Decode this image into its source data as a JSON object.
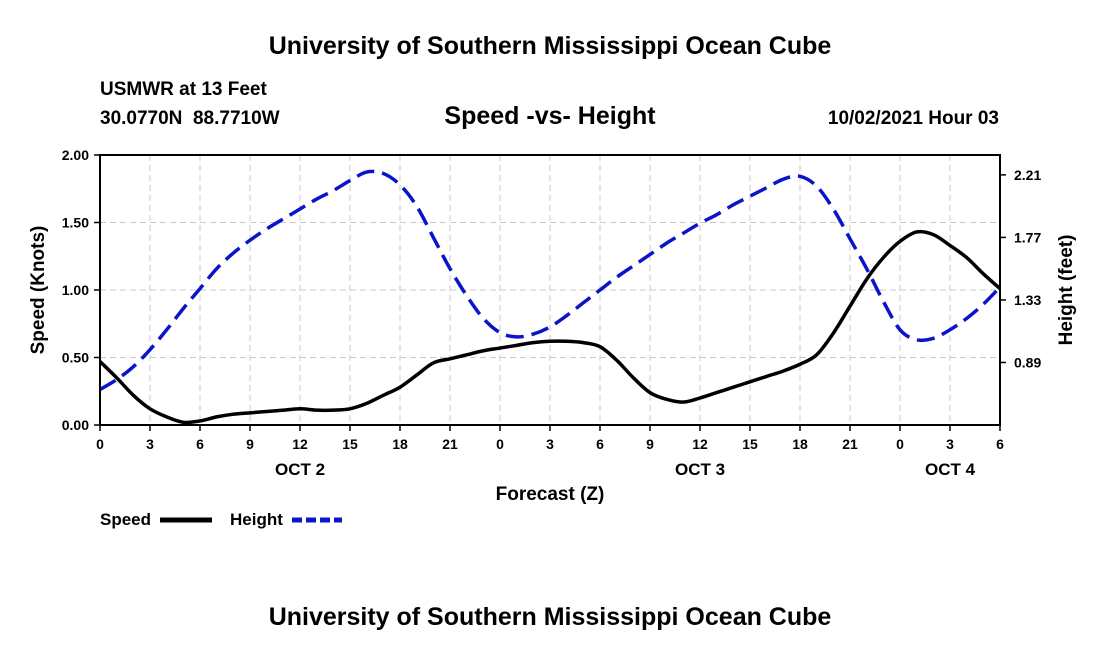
{
  "header": {
    "title": "University of Southern Mississippi Ocean Cube",
    "station": "USMWR at 13 Feet",
    "coordinates": "30.0770N  88.7710W",
    "date_hour": "10/02/2021 Hour 03"
  },
  "footer": {
    "title": "University of Southern Mississippi Ocean Cube"
  },
  "colors": {
    "speed": "#000000",
    "height": "#0a14c8",
    "grid": "#c8c8c8"
  },
  "chart_data": {
    "type": "line",
    "title": "Speed -vs- Height",
    "xlabel": "Forecast (Z)",
    "ylabel_left": "Speed (Knots)",
    "ylabel_right": "Height (feet)",
    "x_range": [
      0,
      54
    ],
    "x_ticks": [
      0,
      3,
      6,
      9,
      12,
      15,
      18,
      21,
      24,
      27,
      30,
      33,
      36,
      39,
      42,
      45,
      48,
      51,
      54
    ],
    "x_tick_labels": [
      "0",
      "3",
      "6",
      "9",
      "12",
      "15",
      "18",
      "21",
      "0",
      "3",
      "6",
      "9",
      "12",
      "15",
      "18",
      "21",
      "0",
      "3",
      "6"
    ],
    "day_labels": [
      {
        "x": 12,
        "label": "OCT 2"
      },
      {
        "x": 36,
        "label": "OCT 3"
      },
      {
        "x": 51,
        "label": "OCT 4"
      }
    ],
    "y_left_range": [
      0,
      2
    ],
    "y_left_ticks": [
      0,
      0.5,
      1,
      1.5,
      2
    ],
    "y_left_tick_labels": [
      "0.00",
      "0.50",
      "1.00",
      "1.50",
      "2.00"
    ],
    "y_right_range": [
      0.45,
      2.35
    ],
    "y_right_ticks": [
      0.89,
      1.33,
      1.77,
      2.21
    ],
    "y_right_tick_labels": [
      "0.89",
      "1.33",
      "1.77",
      "2.21"
    ],
    "series": [
      {
        "name": "Speed",
        "axis": "left",
        "style": "solid",
        "x": [
          0,
          1,
          2,
          3,
          4,
          5,
          6,
          7,
          8,
          9,
          10,
          11,
          12,
          13,
          14,
          15,
          16,
          17,
          18,
          19,
          20,
          21,
          22,
          23,
          24,
          25,
          26,
          27,
          28,
          29,
          30,
          31,
          32,
          33,
          34,
          35,
          36,
          37,
          38,
          39,
          40,
          41,
          42,
          43,
          44,
          45,
          46,
          47,
          48,
          49,
          50,
          51,
          52,
          53,
          54
        ],
        "values": [
          0.47,
          0.35,
          0.22,
          0.12,
          0.06,
          0.02,
          0.03,
          0.06,
          0.08,
          0.09,
          0.1,
          0.11,
          0.12,
          0.11,
          0.11,
          0.12,
          0.16,
          0.22,
          0.28,
          0.37,
          0.46,
          0.49,
          0.52,
          0.55,
          0.57,
          0.59,
          0.61,
          0.62,
          0.62,
          0.61,
          0.58,
          0.48,
          0.35,
          0.24,
          0.19,
          0.17,
          0.2,
          0.24,
          0.28,
          0.32,
          0.36,
          0.4,
          0.45,
          0.52,
          0.68,
          0.88,
          1.08,
          1.24,
          1.36,
          1.43,
          1.41,
          1.33,
          1.24,
          1.12,
          1.01
        ]
      },
      {
        "name": "Height",
        "axis": "right",
        "style": "dashed",
        "x": [
          0,
          1,
          2,
          3,
          4,
          5,
          6,
          7,
          8,
          9,
          10,
          11,
          12,
          13,
          14,
          15,
          16,
          17,
          18,
          19,
          20,
          21,
          22,
          23,
          24,
          25,
          26,
          27,
          28,
          29,
          30,
          31,
          32,
          33,
          34,
          35,
          36,
          37,
          38,
          39,
          40,
          41,
          42,
          43,
          44,
          45,
          46,
          47,
          48,
          49,
          50,
          51,
          52,
          53,
          54
        ],
        "values": [
          0.7,
          0.77,
          0.86,
          0.98,
          1.12,
          1.27,
          1.41,
          1.55,
          1.66,
          1.75,
          1.83,
          1.9,
          1.97,
          2.04,
          2.1,
          2.17,
          2.23,
          2.22,
          2.14,
          1.99,
          1.77,
          1.55,
          1.36,
          1.2,
          1.1,
          1.07,
          1.09,
          1.14,
          1.22,
          1.31,
          1.4,
          1.49,
          1.57,
          1.65,
          1.73,
          1.8,
          1.87,
          1.93,
          2.0,
          2.06,
          2.12,
          2.18,
          2.2,
          2.13,
          1.97,
          1.76,
          1.55,
          1.32,
          1.12,
          1.05,
          1.06,
          1.12,
          1.2,
          1.3,
          1.42
        ]
      }
    ],
    "legend": [
      {
        "label": "Speed",
        "style": "solid"
      },
      {
        "label": "Height",
        "style": "dashed"
      }
    ]
  }
}
